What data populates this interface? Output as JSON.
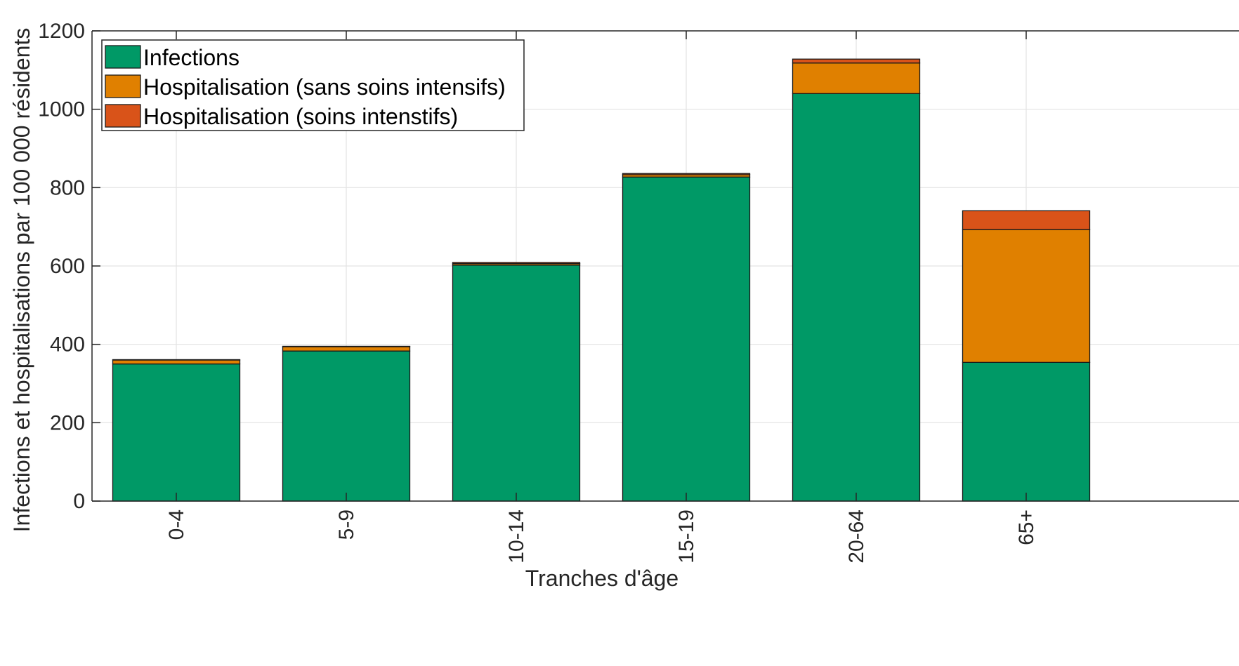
{
  "chart_data": {
    "type": "bar",
    "stacked": true,
    "categories": [
      "0-4",
      "5-9",
      "10-14",
      "15-19",
      "20-64",
      "65+"
    ],
    "series": [
      {
        "name": "Infections",
        "values": [
          350,
          383,
          602,
          827,
          1040,
          354
        ],
        "color": "#009966"
      },
      {
        "name": "Hospitalisation (sans soins intensifs)",
        "values": [
          10,
          11,
          4,
          6,
          78,
          339
        ],
        "color": "#E08000"
      },
      {
        "name": "Hospitalisation (soins intenstifs)",
        "values": [
          1,
          1,
          3,
          3,
          10,
          48
        ],
        "color": "#D95319"
      }
    ],
    "xlabel": "Tranches d'âge",
    "ylabel": "Infections et hospitalisations par 100 000 résidents",
    "ylim": [
      0,
      1200
    ],
    "yticks": [
      0,
      200,
      400,
      600,
      800,
      1000,
      1200
    ],
    "grid": true,
    "legend_position": "top-left",
    "tick_label_rotation": "vertical"
  }
}
